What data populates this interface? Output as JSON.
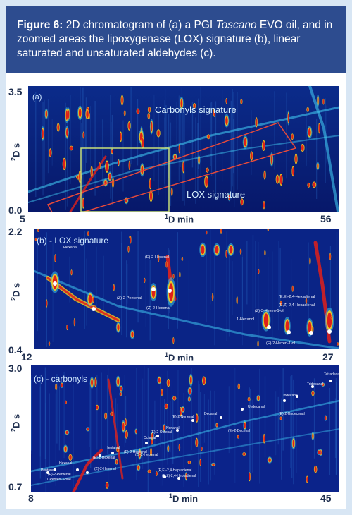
{
  "caption": {
    "label": "Figure 6:",
    "text_before_italic": "2D chromatogram of (a) a PGI",
    "italic": "Toscano",
    "text_after_italic": "EVO oil, and in zoomed areas the lipoxygenase (LOX) signature (b), linear saturated and unsaturated aldehydes (c)."
  },
  "colors": {
    "header": "#2d4c8f",
    "background": "#0a1a6e",
    "peak_red": "#e0201a",
    "peak_yellow": "#f5d21e",
    "peak_cyan": "#3fd4f0"
  },
  "panels": [
    {
      "id": "a",
      "tag": "(a)",
      "x_axis_label": "min",
      "y_axis_label": "s",
      "x_ticks": [
        "5",
        "56"
      ],
      "y_ticks": [
        "3.5",
        "0.0"
      ],
      "annotations": [
        "Carbonyls signature",
        "LOX signature"
      ]
    },
    {
      "id": "b",
      "tag": "(b) - LOX signature",
      "x_axis_label": "min",
      "y_axis_label": "s",
      "x_ticks": [
        "12",
        "27"
      ],
      "y_ticks": [
        "2.2",
        "0.4"
      ],
      "compounds": [
        "Hexanal",
        "(E)-2-Hexenal",
        "(Z)-2-Pentenal",
        "(Z)-2-Hexenal",
        "(E,E)-2,4-Hexadienal",
        "(E,Z)-2,4-Hexadienal",
        "(Z)-3-Hexen-1-ol",
        "1-Hexanol",
        "(E)-2-Hexen-1-ol"
      ]
    },
    {
      "id": "c",
      "tag": "(c) - carbonyls",
      "x_axis_label": "min",
      "y_axis_label": "s",
      "x_ticks": [
        "8",
        "45"
      ],
      "y_ticks": [
        "3.0",
        "0.7"
      ],
      "compounds": [
        "Pentanal",
        "(E)-2-Pentenal",
        "1-Penten-3-one",
        "Hexanal",
        "(E)-2-Hexenal",
        "(Z)-2-Hexenal",
        "Heptanal",
        "(E)-2-Heptenal",
        "(Z)-2-Heptenal",
        "Octanal",
        "(E)-2-Octenal",
        "Nonanal",
        "(E)-2-Nonenal",
        "Decanal",
        "(E)-2-Decenal",
        "(E,E)-2,4-Heptadienal",
        "(E,Z)-2,4-Heptadienal",
        "Undecanal",
        "Dodecanal",
        "(E)-2-Undecenal",
        "Tridecanal",
        "Tetradecanal"
      ]
    }
  ]
}
